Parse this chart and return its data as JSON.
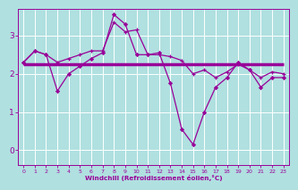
{
  "background_color": "#b0e0e0",
  "grid_color": "#d0ecec",
  "line_color": "#990099",
  "xlabel": "Windchill (Refroidissement éolien,°C)",
  "xlabel_color": "#990099",
  "tick_color": "#990099",
  "xlim": [
    -0.5,
    23.5
  ],
  "ylim": [
    -0.4,
    3.7
  ],
  "yticks": [
    0,
    1,
    2,
    3
  ],
  "xticks": [
    0,
    1,
    2,
    3,
    4,
    5,
    6,
    7,
    8,
    9,
    10,
    11,
    12,
    13,
    14,
    15,
    16,
    17,
    18,
    19,
    20,
    21,
    22,
    23
  ],
  "series1_x": [
    0,
    1,
    2,
    3,
    4,
    5,
    6,
    7,
    8,
    9,
    10,
    11,
    12,
    13,
    14,
    15,
    16,
    17,
    18,
    19,
    20,
    21,
    22,
    23
  ],
  "series1_y": [
    2.25,
    2.25,
    2.25,
    2.25,
    2.25,
    2.25,
    2.25,
    2.25,
    2.25,
    2.25,
    2.25,
    2.25,
    2.25,
    2.25,
    2.25,
    2.25,
    2.25,
    2.25,
    2.25,
    2.25,
    2.25,
    2.25,
    2.25,
    2.25
  ],
  "series2_x": [
    0,
    1,
    2,
    3,
    4,
    5,
    6,
    7,
    8,
    9,
    10,
    11,
    12,
    13,
    14,
    15,
    16,
    17,
    18,
    19,
    20,
    21,
    22,
    23
  ],
  "series2_y": [
    2.3,
    2.6,
    2.5,
    2.3,
    2.4,
    2.5,
    2.6,
    2.6,
    3.35,
    3.1,
    3.15,
    2.5,
    2.5,
    2.45,
    2.35,
    2.0,
    2.1,
    1.9,
    2.05,
    2.25,
    2.1,
    1.9,
    2.05,
    2.0
  ],
  "series3_x": [
    0,
    1,
    2,
    3,
    4,
    5,
    6,
    7,
    8,
    9,
    10,
    11,
    12,
    13,
    14,
    15,
    16,
    17,
    18,
    19,
    20,
    21,
    22,
    23
  ],
  "series3_y": [
    2.3,
    2.6,
    2.5,
    1.55,
    2.0,
    2.2,
    2.4,
    2.55,
    3.55,
    3.3,
    2.5,
    2.5,
    2.55,
    1.75,
    0.55,
    0.15,
    1.0,
    1.65,
    1.9,
    2.3,
    2.1,
    1.65,
    1.9,
    1.9
  ]
}
